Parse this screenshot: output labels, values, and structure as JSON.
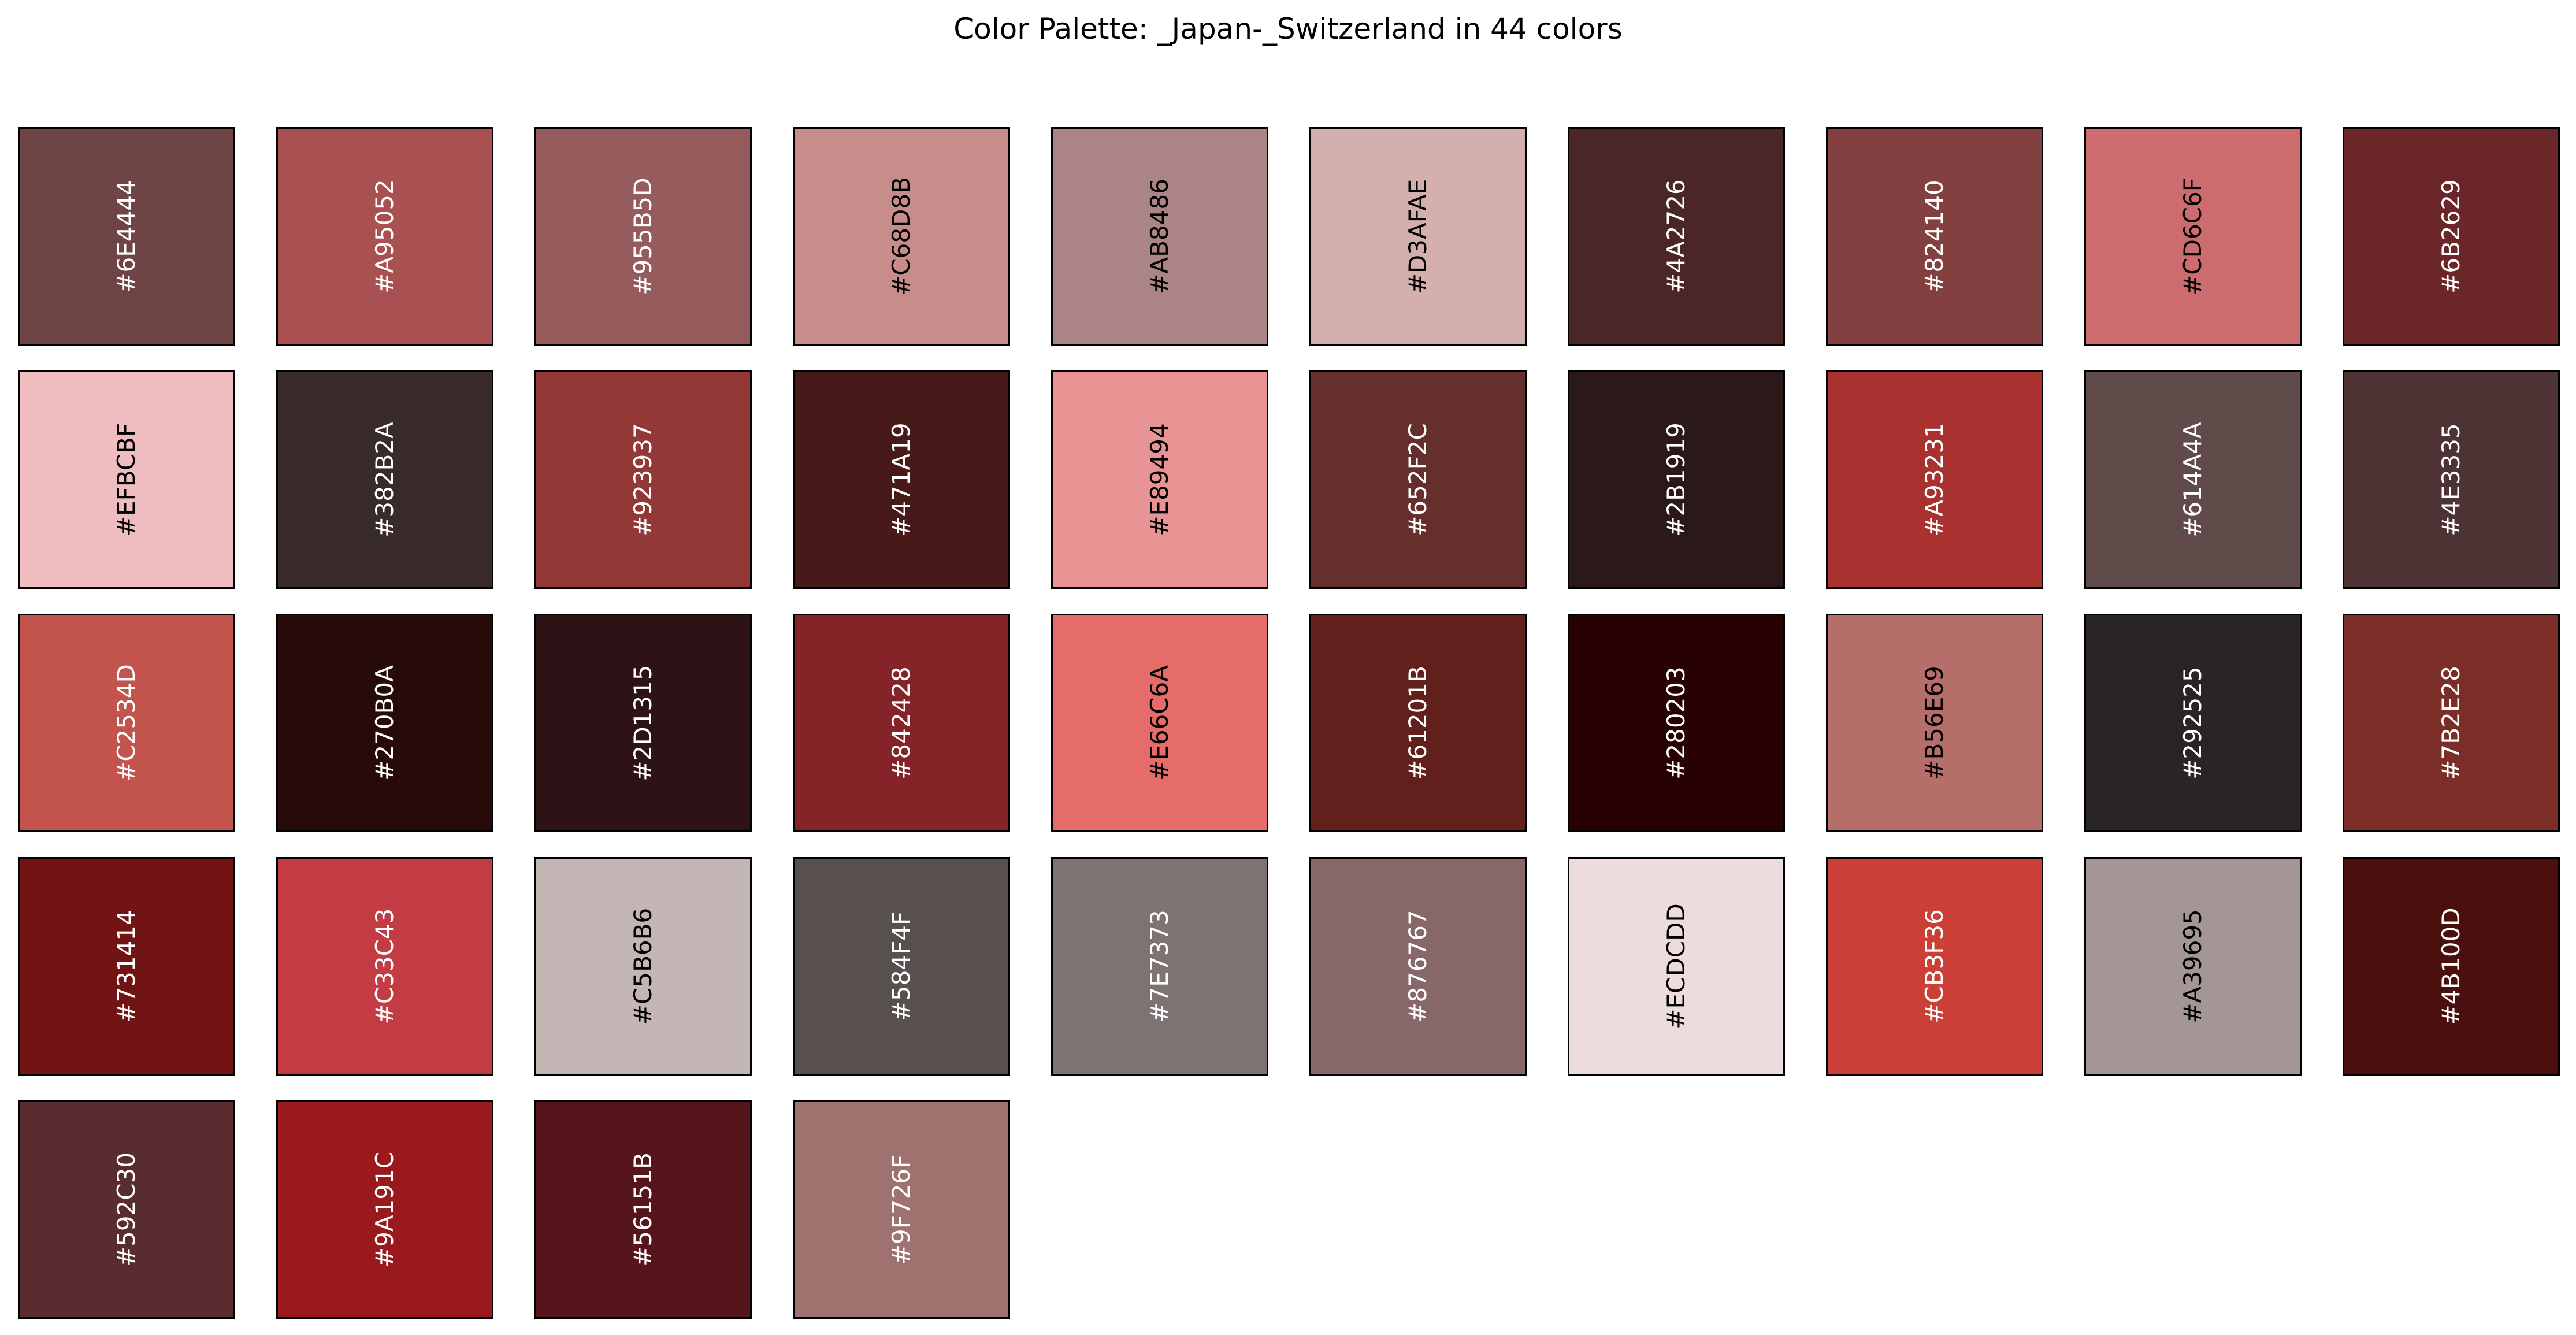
{
  "title": "Color Palette: _Japan-_Switzerland in 44 colors",
  "chart_data": {
    "type": "palette",
    "title": "Color Palette: _Japan-_Switzerland in 44 colors",
    "columns": 10,
    "colors": [
      "#6E4444",
      "#A95052",
      "#955B5D",
      "#C68D8B",
      "#AB8486",
      "#D3AFAE",
      "#4A2726",
      "#824140",
      "#CD6C6F",
      "#6B2629",
      "#EFBCBF",
      "#382B2A",
      "#923937",
      "#471A19",
      "#E89494",
      "#652F2C",
      "#2B1919",
      "#A93231",
      "#614A4A",
      "#4E3335",
      "#C2534D",
      "#270B0A",
      "#2D1315",
      "#842428",
      "#E66C6A",
      "#61201B",
      "#280203",
      "#B56E69",
      "#292525",
      "#7B2E28",
      "#731414",
      "#C33C43",
      "#C5B6B6",
      "#584F4F",
      "#7E7373",
      "#876767",
      "#ECDCDD",
      "#CB3F36",
      "#A39695",
      "#4B100D",
      "#592C30",
      "#9A191C",
      "#56151B",
      "#9F726F"
    ]
  }
}
